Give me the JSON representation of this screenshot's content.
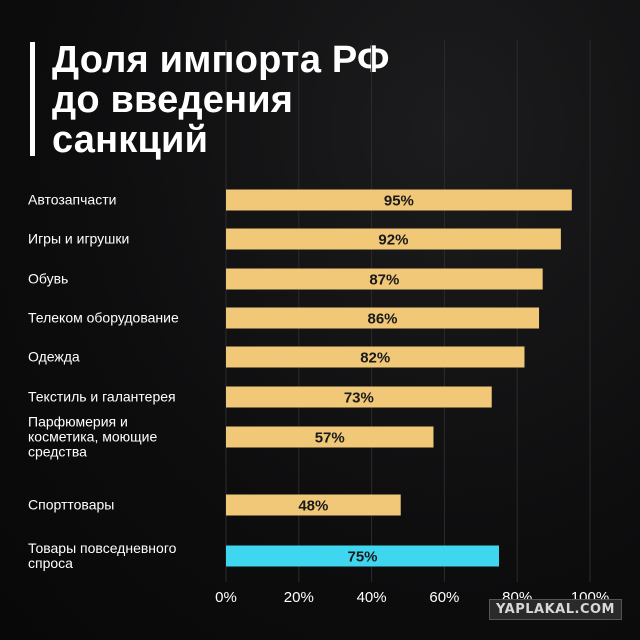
{
  "chart_data": {
    "type": "bar",
    "orientation": "horizontal",
    "title_lines": [
      "Доля импорта РФ",
      "до введения",
      "санкций"
    ],
    "categories": [
      [
        "Автозапчасти"
      ],
      [
        "Игры и игрушки"
      ],
      [
        "Обувь"
      ],
      [
        "Телеком оборудование"
      ],
      [
        "Одежда"
      ],
      [
        "Текстиль и галантерея"
      ],
      [
        "Парфюмерия и",
        "косметика, моющие",
        "средства"
      ],
      [
        "Спорттовары"
      ],
      [
        "Товары повседневного",
        "спроса"
      ]
    ],
    "values": [
      95,
      92,
      87,
      86,
      82,
      73,
      57,
      48,
      75
    ],
    "value_labels": [
      "95%",
      "92%",
      "87%",
      "86%",
      "82%",
      "73%",
      "57%",
      "48%",
      "75%"
    ],
    "xlim": [
      0,
      100
    ],
    "x_ticks": [
      0,
      20,
      40,
      60,
      80,
      100
    ],
    "x_tick_labels": [
      "0%",
      "20%",
      "40%",
      "60%",
      "80%",
      "100%"
    ],
    "grid": true,
    "colors": {
      "bar": "#f0c878",
      "highlight_bar": "#3fd6f0",
      "background": "#0d0d0e",
      "text": "#ffffff",
      "bar_label": "#1a1a1a"
    },
    "highlight_index": 8
  },
  "watermark": "YAPLAKAL.COM"
}
